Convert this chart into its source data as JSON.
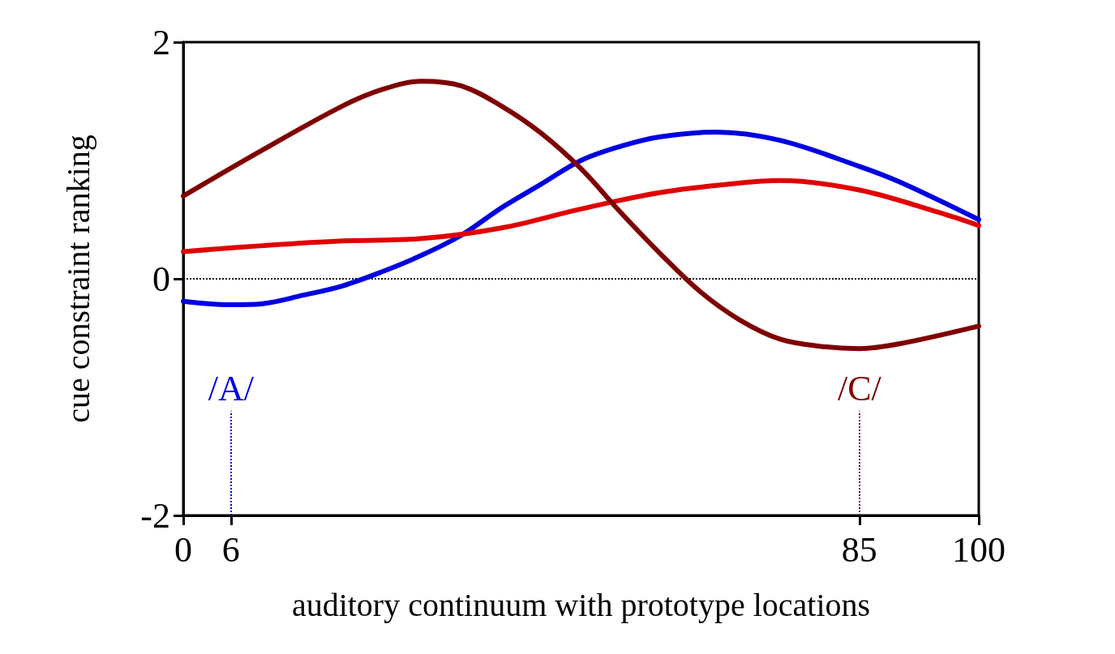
{
  "chart_data": {
    "type": "line",
    "xlabel": "auditory continuum with prototype locations",
    "ylabel": "cue constraint ranking",
    "xlim": [
      0,
      100
    ],
    "xticks": [
      0,
      6,
      85,
      100
    ],
    "ylim": [
      -2,
      2
    ],
    "yticks": [
      -2,
      0,
      2
    ],
    "grid": false,
    "marker": "none",
    "line_style": "solid",
    "series": [
      {
        "color": "#0000e0",
        "x": [
          0,
          6,
          10,
          15,
          20,
          25,
          30,
          35,
          40,
          45,
          50,
          55,
          60,
          67,
          75,
          85,
          90,
          100
        ],
        "values": [
          -0.19,
          -0.22,
          -0.21,
          -0.14,
          -0.06,
          0.06,
          0.2,
          0.37,
          0.6,
          0.8,
          1.0,
          1.12,
          1.2,
          1.24,
          1.17,
          0.95,
          0.82,
          0.5
        ]
      },
      {
        "color": "#e00000",
        "x": [
          0,
          10,
          20,
          30,
          40,
          50,
          60,
          70,
          75,
          85,
          95,
          100
        ],
        "values": [
          0.23,
          0.28,
          0.32,
          0.34,
          0.43,
          0.59,
          0.73,
          0.81,
          0.83,
          0.75,
          0.56,
          0.45
        ]
      },
      {
        "color": "#7f0000",
        "x": [
          0,
          10,
          20,
          25,
          30,
          35,
          40,
          45,
          50,
          55,
          60,
          65,
          70,
          75,
          80,
          85,
          90,
          100
        ],
        "values": [
          0.7,
          1.09,
          1.46,
          1.6,
          1.67,
          1.63,
          1.46,
          1.23,
          0.93,
          0.56,
          0.21,
          -0.11,
          -0.35,
          -0.51,
          -0.57,
          -0.59,
          -0.55,
          -0.4
        ]
      }
    ],
    "ref_lines": [
      {
        "axis": "y",
        "value": 0,
        "color": "#000000",
        "line_style": "dotted"
      },
      {
        "axis": "x",
        "value": 6,
        "label": "/A/",
        "color": "#0000e0",
        "line_style": "dotted"
      },
      {
        "axis": "x",
        "value": 85,
        "label": "/C/",
        "color": "#7f0000",
        "line_style": "dotted"
      }
    ]
  }
}
